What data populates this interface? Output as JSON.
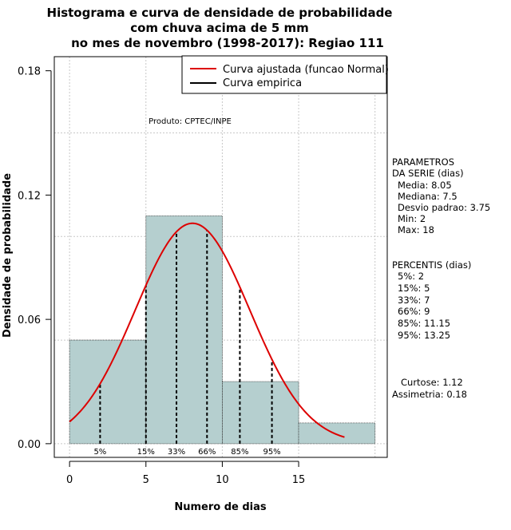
{
  "chart_data": {
    "type": "bar",
    "title_lines": [
      "Histograma e curva de densidade de probabilidade",
      "com chuva acima de 5 mm",
      "no mes de novembro (1998-2017): Regiao 111"
    ],
    "xlabel": "Numero de dias",
    "ylabel": "Densidade de probabilidade",
    "xlim": [
      -1,
      20.8
    ],
    "ylim": [
      -0.0066,
      0.1868
    ],
    "xticks": [
      0,
      5,
      10,
      15
    ],
    "yticks": [
      0.0,
      0.06,
      0.12,
      0.18
    ],
    "ytick_labels": [
      "0.00",
      "0.06",
      "0.12",
      "0.18"
    ],
    "grid_x": [
      0,
      5,
      10,
      15,
      20
    ],
    "grid_y": [
      0.0,
      0.05,
      0.1,
      0.15
    ],
    "histogram": {
      "bins": [
        [
          0,
          5
        ],
        [
          5,
          10
        ],
        [
          10,
          15
        ],
        [
          15,
          20
        ]
      ],
      "densities": [
        0.05,
        0.11,
        0.03,
        0.01
      ],
      "fill_color": "#b5cfcf"
    },
    "fitted_curve": {
      "name": "Curva ajustada (funcao Normal)",
      "color": "#dd0000",
      "distribution": "normal",
      "mean": 8.05,
      "sd": 3.75,
      "x_range": [
        0,
        18
      ]
    },
    "empirical_curve": {
      "name": "Curva empirica",
      "color": "#000000"
    },
    "percentile_lines": [
      {
        "label": "5%",
        "x": 2
      },
      {
        "label": "15%",
        "x": 5
      },
      {
        "label": "33%",
        "x": 7
      },
      {
        "label": "66%",
        "x": 9
      },
      {
        "label": "85%",
        "x": 11.15
      },
      {
        "label": "95%",
        "x": 13.25
      }
    ],
    "legend_position": "top-right",
    "product_label": "Produto: CPTEC/INPE"
  },
  "side_panel": {
    "params_title_1": "PARAMETROS",
    "params_title_2": "DA SERIE (dias)",
    "params": [
      "Media: 8.05",
      "Mediana: 7.5",
      "Desvio padrao: 3.75",
      "Min: 2",
      "Max: 18"
    ],
    "percentis_title": "PERCENTIS (dias)",
    "percentis": [
      "5%: 2",
      "15%: 5",
      "33%: 7",
      "66%: 9",
      "85%: 11.15",
      "95%: 13.25"
    ],
    "curtose": "Curtose: 1.12",
    "assimetria": "Assimetria: 0.18"
  }
}
